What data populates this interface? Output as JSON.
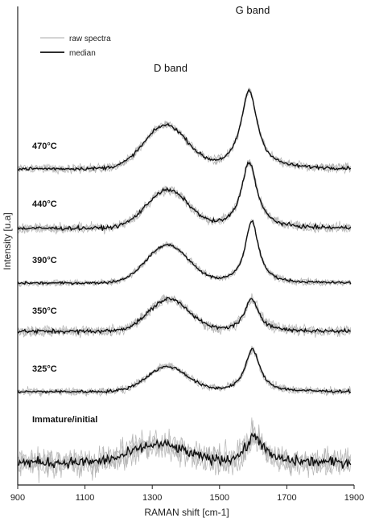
{
  "chart_data": {
    "type": "line",
    "xlabel": "RAMAN shift [cm-1]",
    "ylabel": "Intensity [u.a]",
    "xlim": [
      900,
      1900
    ],
    "xticks": [
      900,
      1100,
      1300,
      1500,
      1700,
      1900
    ],
    "legend": {
      "placement": "top-left",
      "entries": [
        "raw spectra",
        "median"
      ]
    },
    "annotations": [
      {
        "text": "D band",
        "x": 1350
      },
      {
        "text": "G band",
        "x": 1590
      }
    ],
    "spectra": [
      {
        "label": "470°C",
        "baseline_left": 0.0,
        "baseline_right": 0.0,
        "d_center": 1340,
        "d_height": 1.4,
        "d_width": 90,
        "g_center": 1588,
        "g_height": 2.55,
        "g_width": 30,
        "noise": 0.05
      },
      {
        "label": "440°C",
        "baseline_left": 0.0,
        "baseline_right": 0.0,
        "d_center": 1345,
        "d_height": 1.3,
        "d_width": 88,
        "g_center": 1588,
        "g_height": 2.3,
        "g_width": 28,
        "noise": 0.06
      },
      {
        "label": "390°C",
        "baseline_left": 0.0,
        "baseline_right": 0.0,
        "d_center": 1345,
        "d_height": 1.3,
        "d_width": 88,
        "g_center": 1596,
        "g_height": 2.15,
        "g_width": 24,
        "noise": 0.04
      },
      {
        "label": "350°C",
        "baseline_left": 0.0,
        "baseline_right": 0.0,
        "d_center": 1350,
        "d_height": 1.05,
        "d_width": 85,
        "g_center": 1596,
        "g_height": 1.05,
        "g_width": 26,
        "noise": 0.06
      },
      {
        "label": "325°C",
        "baseline_left": 0.0,
        "baseline_right": 0.0,
        "d_center": 1345,
        "d_height": 0.9,
        "d_width": 85,
        "g_center": 1598,
        "g_height": 1.55,
        "g_width": 26,
        "noise": 0.05
      },
      {
        "label": "Immature/initial",
        "baseline_left": 0.0,
        "baseline_right": 0.0,
        "d_center": 1320,
        "d_height": 0.5,
        "d_width": 110,
        "g_center": 1605,
        "g_height": 0.75,
        "g_width": 30,
        "noise": 0.14
      }
    ]
  }
}
